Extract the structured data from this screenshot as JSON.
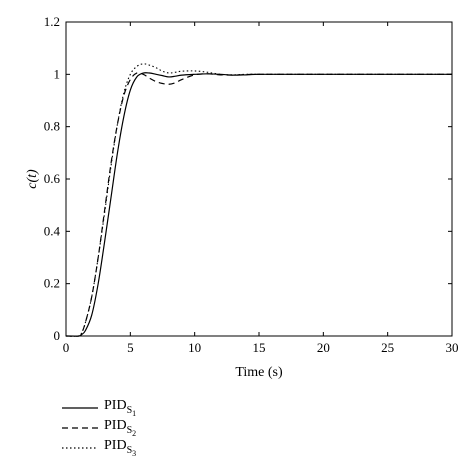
{
  "chart_data": {
    "type": "line",
    "title": "",
    "xlabel": "Time (s)",
    "ylabel": "c(t)",
    "xlim": [
      0,
      30
    ],
    "ylim": [
      0,
      1.2
    ],
    "xticks": [
      "0",
      "5",
      "10",
      "15",
      "20",
      "25",
      "30"
    ],
    "yticks": [
      "0",
      "0.2",
      "0.4",
      "0.6",
      "0.8",
      "1",
      "1.2"
    ],
    "grid": false,
    "legend_position": "bottom-left",
    "series": [
      {
        "name": "PID_S1",
        "style": "solid",
        "label_base": "PID",
        "label_sub": "S",
        "label_subsub": "1",
        "x": [
          0,
          1,
          1.2,
          1.5,
          2,
          2.5,
          3,
          3.5,
          4,
          4.5,
          5,
          5.5,
          6,
          6.5,
          7,
          7.5,
          8,
          8.5,
          9,
          10,
          11,
          12,
          13,
          14,
          15,
          20,
          25,
          30
        ],
        "y": [
          0,
          0,
          0.005,
          0.02,
          0.08,
          0.2,
          0.36,
          0.53,
          0.7,
          0.84,
          0.94,
          0.99,
          1.005,
          1.005,
          1.0,
          0.995,
          0.99,
          0.993,
          0.997,
          1.0,
          1.002,
          1.0,
          0.997,
          0.998,
          1.0,
          1.0,
          1.0,
          1.0
        ]
      },
      {
        "name": "PID_S2",
        "style": "dashed",
        "label_base": "PID",
        "label_sub": "S",
        "label_subsub": "2",
        "x": [
          0,
          1,
          1.2,
          1.5,
          2,
          2.5,
          3,
          3.5,
          4,
          4.5,
          5,
          5.5,
          6,
          6.5,
          7,
          7.5,
          8,
          8.5,
          9,
          10,
          11,
          12,
          13,
          14,
          15,
          20,
          25,
          30
        ],
        "y": [
          0,
          0,
          0.01,
          0.05,
          0.15,
          0.3,
          0.48,
          0.66,
          0.81,
          0.92,
          0.98,
          1.005,
          1.0,
          0.985,
          0.972,
          0.965,
          0.962,
          0.968,
          0.98,
          0.998,
          1.002,
          0.998,
          0.997,
          0.999,
          1.0,
          1.0,
          1.0,
          1.0
        ]
      },
      {
        "name": "PID_S3",
        "style": "dotted",
        "label_base": "PID",
        "label_sub": "S",
        "label_subsub": "3",
        "x": [
          0,
          1,
          1.2,
          1.5,
          2,
          2.5,
          3,
          3.5,
          4,
          4.5,
          5,
          5.5,
          6,
          6.5,
          7,
          7.5,
          8,
          8.5,
          9,
          10,
          11,
          12,
          13,
          14,
          15,
          20,
          25,
          30
        ],
        "y": [
          0,
          0,
          0.01,
          0.05,
          0.15,
          0.3,
          0.47,
          0.65,
          0.81,
          0.93,
          1.0,
          1.03,
          1.04,
          1.035,
          1.025,
          1.012,
          1.005,
          1.008,
          1.012,
          1.013,
          1.008,
          1.0,
          0.998,
          1.0,
          1.0,
          1.0,
          1.0,
          1.0
        ]
      }
    ]
  }
}
